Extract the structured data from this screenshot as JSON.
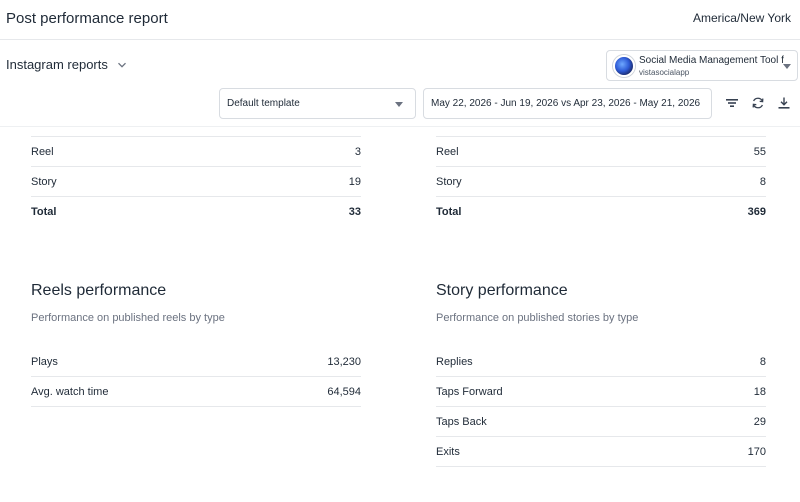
{
  "header": {
    "title": "Post performance report",
    "timezone": "America/New York"
  },
  "controls": {
    "reports_select": "Instagram reports",
    "profile": {
      "name": "Social Media Management Tool f",
      "handle": "vistasocialapp"
    },
    "template": "Default template",
    "date_range": "May 22, 2026 - Jun 19, 2026 vs Apr 23, 2026 - May 21, 2026",
    "icons": {
      "filter": "filter-icon",
      "refresh": "refresh-icon",
      "download": "download-icon",
      "reports_chevron": "chevron-down-icon"
    }
  },
  "left_totals": {
    "rows": [
      {
        "label": "Reel",
        "value": "3"
      },
      {
        "label": "Story",
        "value": "19"
      }
    ],
    "total": {
      "label": "Total",
      "value": "33"
    }
  },
  "right_totals": {
    "rows": [
      {
        "label": "Reel",
        "value": "55"
      },
      {
        "label": "Story",
        "value": "8"
      }
    ],
    "total": {
      "label": "Total",
      "value": "369"
    }
  },
  "reels": {
    "title": "Reels performance",
    "subtitle": "Performance on published reels by type",
    "rows": [
      {
        "label": "Plays",
        "value": "13,230"
      },
      {
        "label": "Avg. watch time",
        "value": "64,594"
      }
    ]
  },
  "stories": {
    "title": "Story performance",
    "subtitle": "Performance on published stories by type",
    "rows": [
      {
        "label": "Replies",
        "value": "8"
      },
      {
        "label": "Taps Forward",
        "value": "18"
      },
      {
        "label": "Taps Back",
        "value": "29"
      },
      {
        "label": "Exits",
        "value": "170"
      }
    ]
  }
}
